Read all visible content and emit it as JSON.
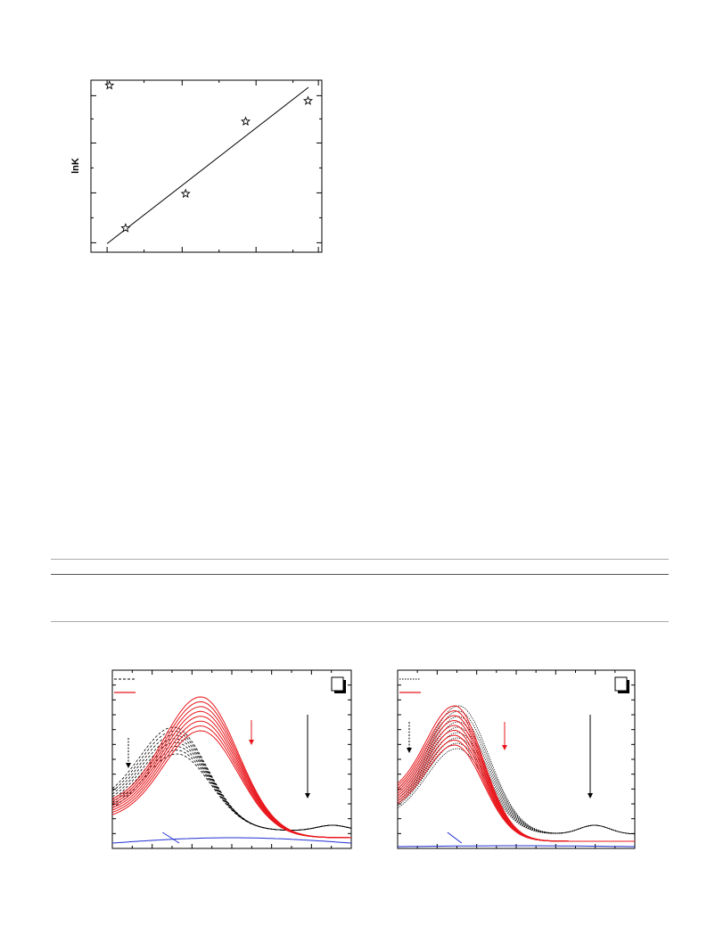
{
  "figure1": {
    "ylabel": "lnK",
    "chart_data": {
      "type": "scatter",
      "title": "",
      "xlabel": "",
      "ylabel": "lnK",
      "marker": "star",
      "xlim": [
        0,
        1
      ],
      "ylim": [
        0,
        1
      ],
      "points": [
        {
          "x": 0.08,
          "y": 0.97
        },
        {
          "x": 0.15,
          "y": 0.14
        },
        {
          "x": 0.41,
          "y": 0.34
        },
        {
          "x": 0.67,
          "y": 0.76
        },
        {
          "x": 0.94,
          "y": 0.88
        }
      ],
      "fit_line": {
        "x": [
          0.07,
          1.0
        ],
        "y": [
          0.05,
          1.0
        ]
      },
      "grid": false,
      "legend": "none"
    }
  },
  "table": {
    "rows": []
  },
  "spectra_left": {
    "chart_data": {
      "type": "line",
      "title": "",
      "xlabel": "",
      "ylabel": "",
      "xlim": [
        0,
        1
      ],
      "ylim": [
        0,
        1
      ],
      "legend": "top-left",
      "series": [
        {
          "name": "",
          "color": "#000000",
          "style": "dashed",
          "count": 8,
          "peak_x": 0.27,
          "peak_y": [
            0.53,
            0.68
          ]
        },
        {
          "name": "",
          "color": "#e8161b",
          "style": "solid",
          "count": 8,
          "peak_x": 0.37,
          "peak_y": [
            0.66,
            0.85
          ]
        },
        {
          "name": "",
          "color": "#2030d0",
          "style": "solid",
          "count": 1,
          "level": 0.03
        }
      ],
      "arrows": [
        "down",
        "down",
        "down"
      ]
    }
  },
  "spectra_right": {
    "chart_data": {
      "type": "line",
      "title": "",
      "xlabel": "",
      "ylabel": "",
      "xlim": [
        0,
        1
      ],
      "ylim": [
        0,
        1
      ],
      "legend": "top-left",
      "series": [
        {
          "name": "",
          "color": "#000000",
          "style": "dotted",
          "count": 9,
          "peak_x": 0.25,
          "peak_y": [
            0.56,
            0.8
          ]
        },
        {
          "name": "",
          "color": "#e8161b",
          "style": "solid",
          "count": 9,
          "peak_x": 0.24,
          "peak_y": [
            0.58,
            0.8
          ]
        },
        {
          "name": "",
          "color": "#2030d0",
          "style": "solid",
          "count": 1,
          "level": 0.01
        }
      ],
      "arrows": [
        "down",
        "down",
        "down"
      ]
    }
  }
}
